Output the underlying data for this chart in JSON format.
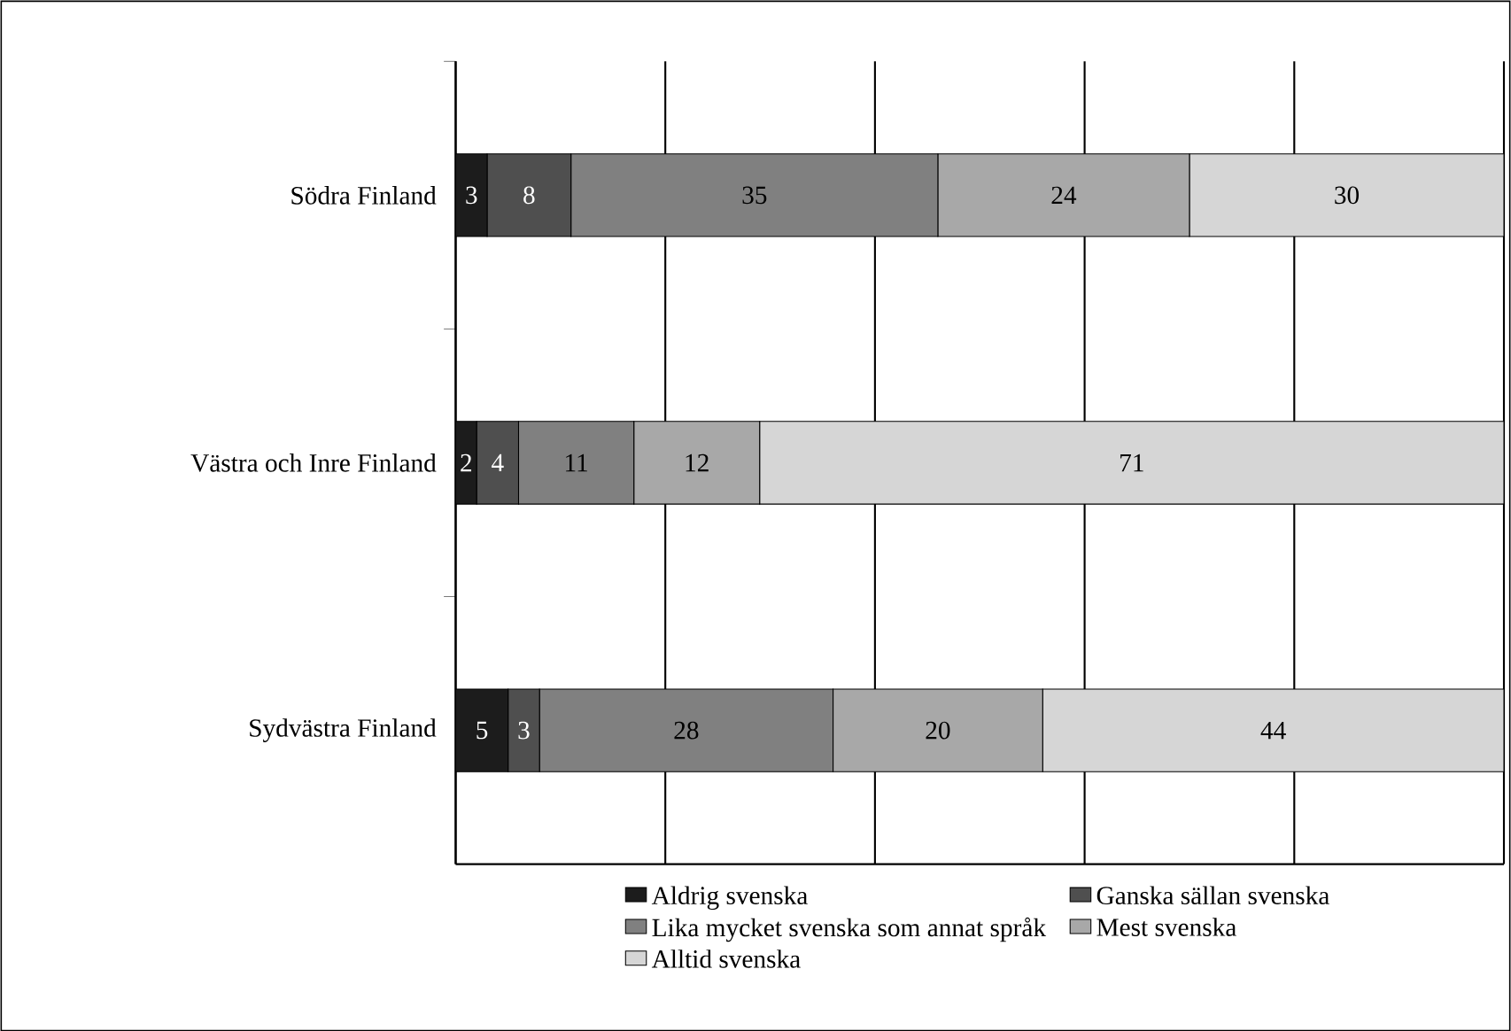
{
  "chart_data": {
    "type": "bar",
    "orientation": "horizontal",
    "stacked": true,
    "categories": [
      "Södra Finland",
      "Västra och Inre Finland",
      "Sydvästra Finland"
    ],
    "series": [
      {
        "name": "Aldrig svenska",
        "color": "#1c1c1c",
        "values": [
          3,
          2,
          5
        ]
      },
      {
        "name": "Ganska sällan svenska",
        "color": "#4f4f4f",
        "values": [
          8,
          4,
          3
        ]
      },
      {
        "name": "Lika mycket svenska som annat språk",
        "color": "#808080",
        "values": [
          35,
          11,
          28
        ]
      },
      {
        "name": "Mest svenska",
        "color": "#a8a8a8",
        "values": [
          24,
          12,
          20
        ]
      },
      {
        "name": "Alltid svenska",
        "color": "#d6d6d6",
        "values": [
          30,
          71,
          44
        ]
      }
    ],
    "tick_labels": "y",
    "grid": "x",
    "data_labels": true,
    "legend": "bottom"
  }
}
